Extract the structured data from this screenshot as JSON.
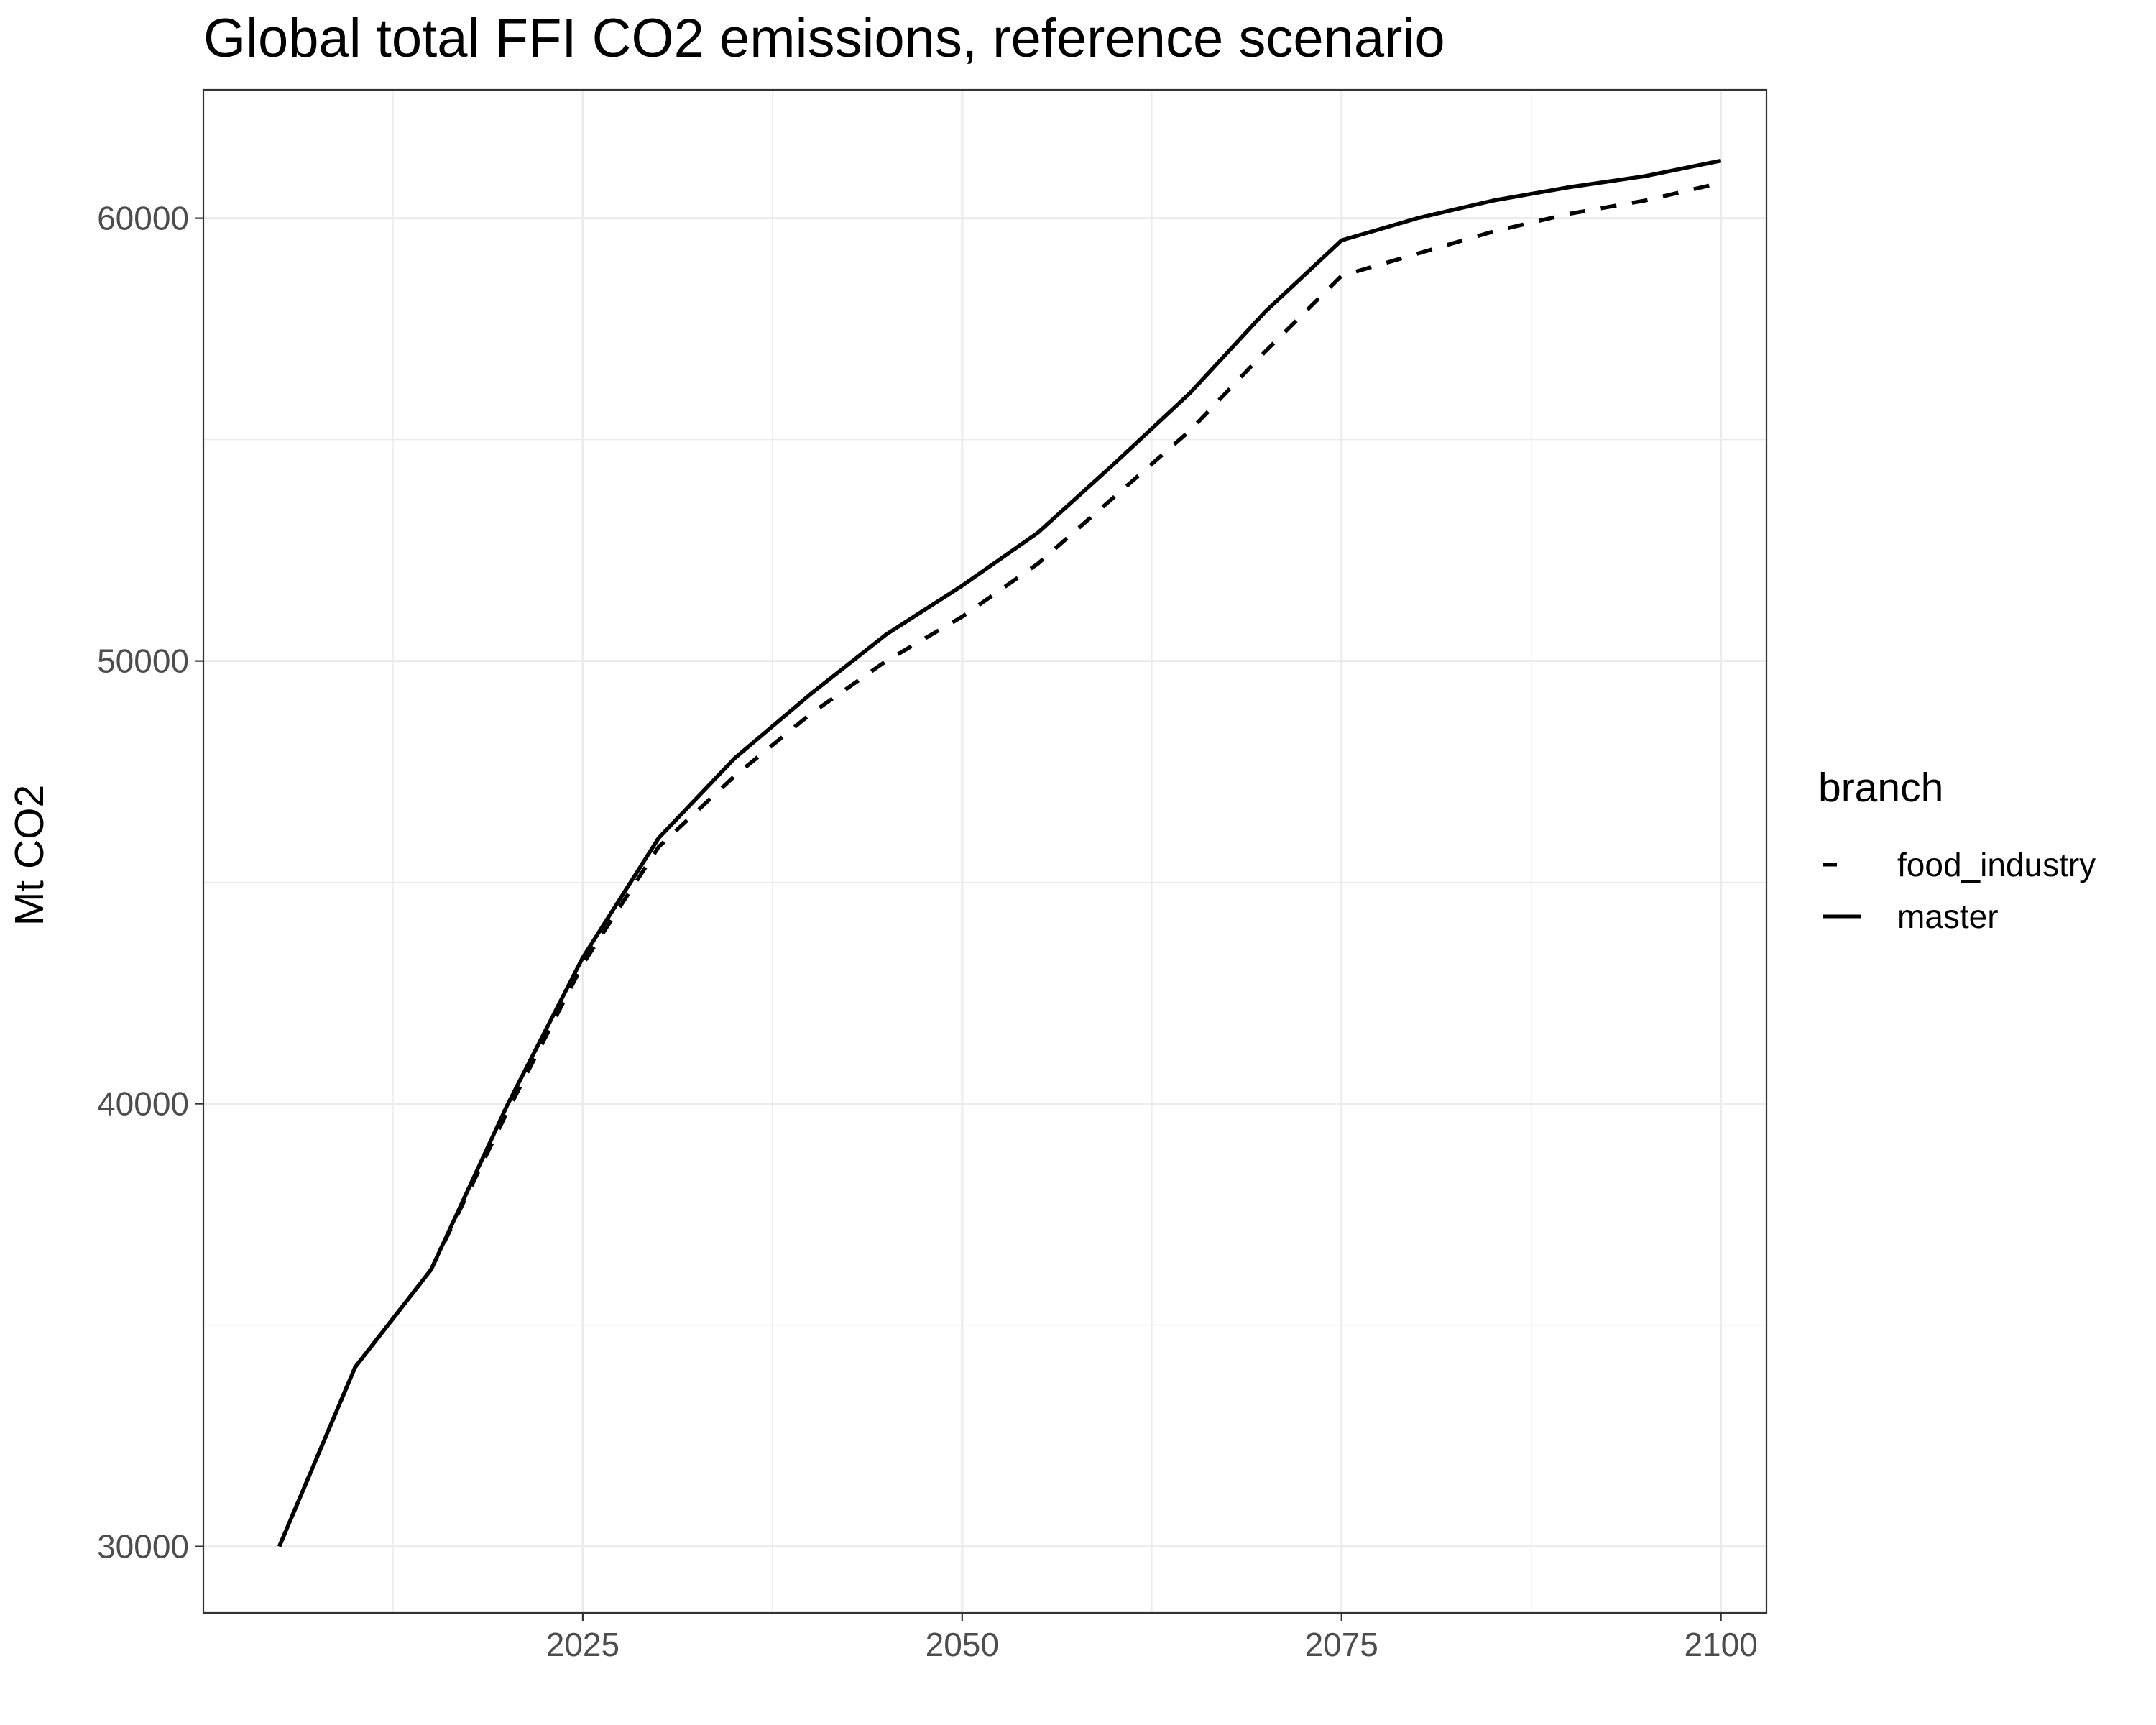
{
  "chart_data": {
    "type": "line",
    "title": "Global total FFI CO2 emissions, reference scenario",
    "xlabel": "",
    "ylabel": "Mt CO2",
    "xlim": [
      2000,
      2103
    ],
    "ylim": [
      28500,
      62900
    ],
    "x_ticks": [
      2025,
      2050,
      2075,
      2100
    ],
    "x_tick_labels": [
      "2025",
      "2050",
      "2075",
      "2100"
    ],
    "x_minor_ticks": [
      2012.5,
      2037.5,
      2062.5,
      2087.5
    ],
    "y_ticks": [
      30000,
      40000,
      50000,
      60000
    ],
    "y_tick_labels": [
      "30000",
      "40000",
      "50000",
      "60000"
    ],
    "y_minor_ticks": [
      35000,
      45000,
      55000
    ],
    "grid": true,
    "legend": {
      "title": "branch",
      "placement": "right",
      "entries": [
        {
          "label": "food_industry",
          "linetype": "dashed"
        },
        {
          "label": "master",
          "linetype": "solid"
        }
      ]
    },
    "x": [
      2005,
      2010,
      2015,
      2020,
      2025,
      2030,
      2035,
      2040,
      2045,
      2050,
      2055,
      2060,
      2065,
      2070,
      2075,
      2080,
      2085,
      2090,
      2095,
      2100
    ],
    "series": [
      {
        "name": "food_industry",
        "linetype": "dashed",
        "color": "#000000",
        "values": [
          30000,
          34050,
          36250,
          39800,
          43150,
          45800,
          47400,
          48800,
          50000,
          51000,
          52200,
          53700,
          55200,
          57000,
          58700,
          59200,
          59700,
          60100,
          60400,
          60800
        ]
      },
      {
        "name": "master",
        "linetype": "solid",
        "color": "#000000",
        "values": [
          30000,
          34050,
          36250,
          39950,
          43300,
          46000,
          47800,
          49250,
          50600,
          51700,
          52900,
          54450,
          56050,
          57900,
          59500,
          60000,
          60400,
          60700,
          60950,
          61300
        ]
      }
    ]
  }
}
